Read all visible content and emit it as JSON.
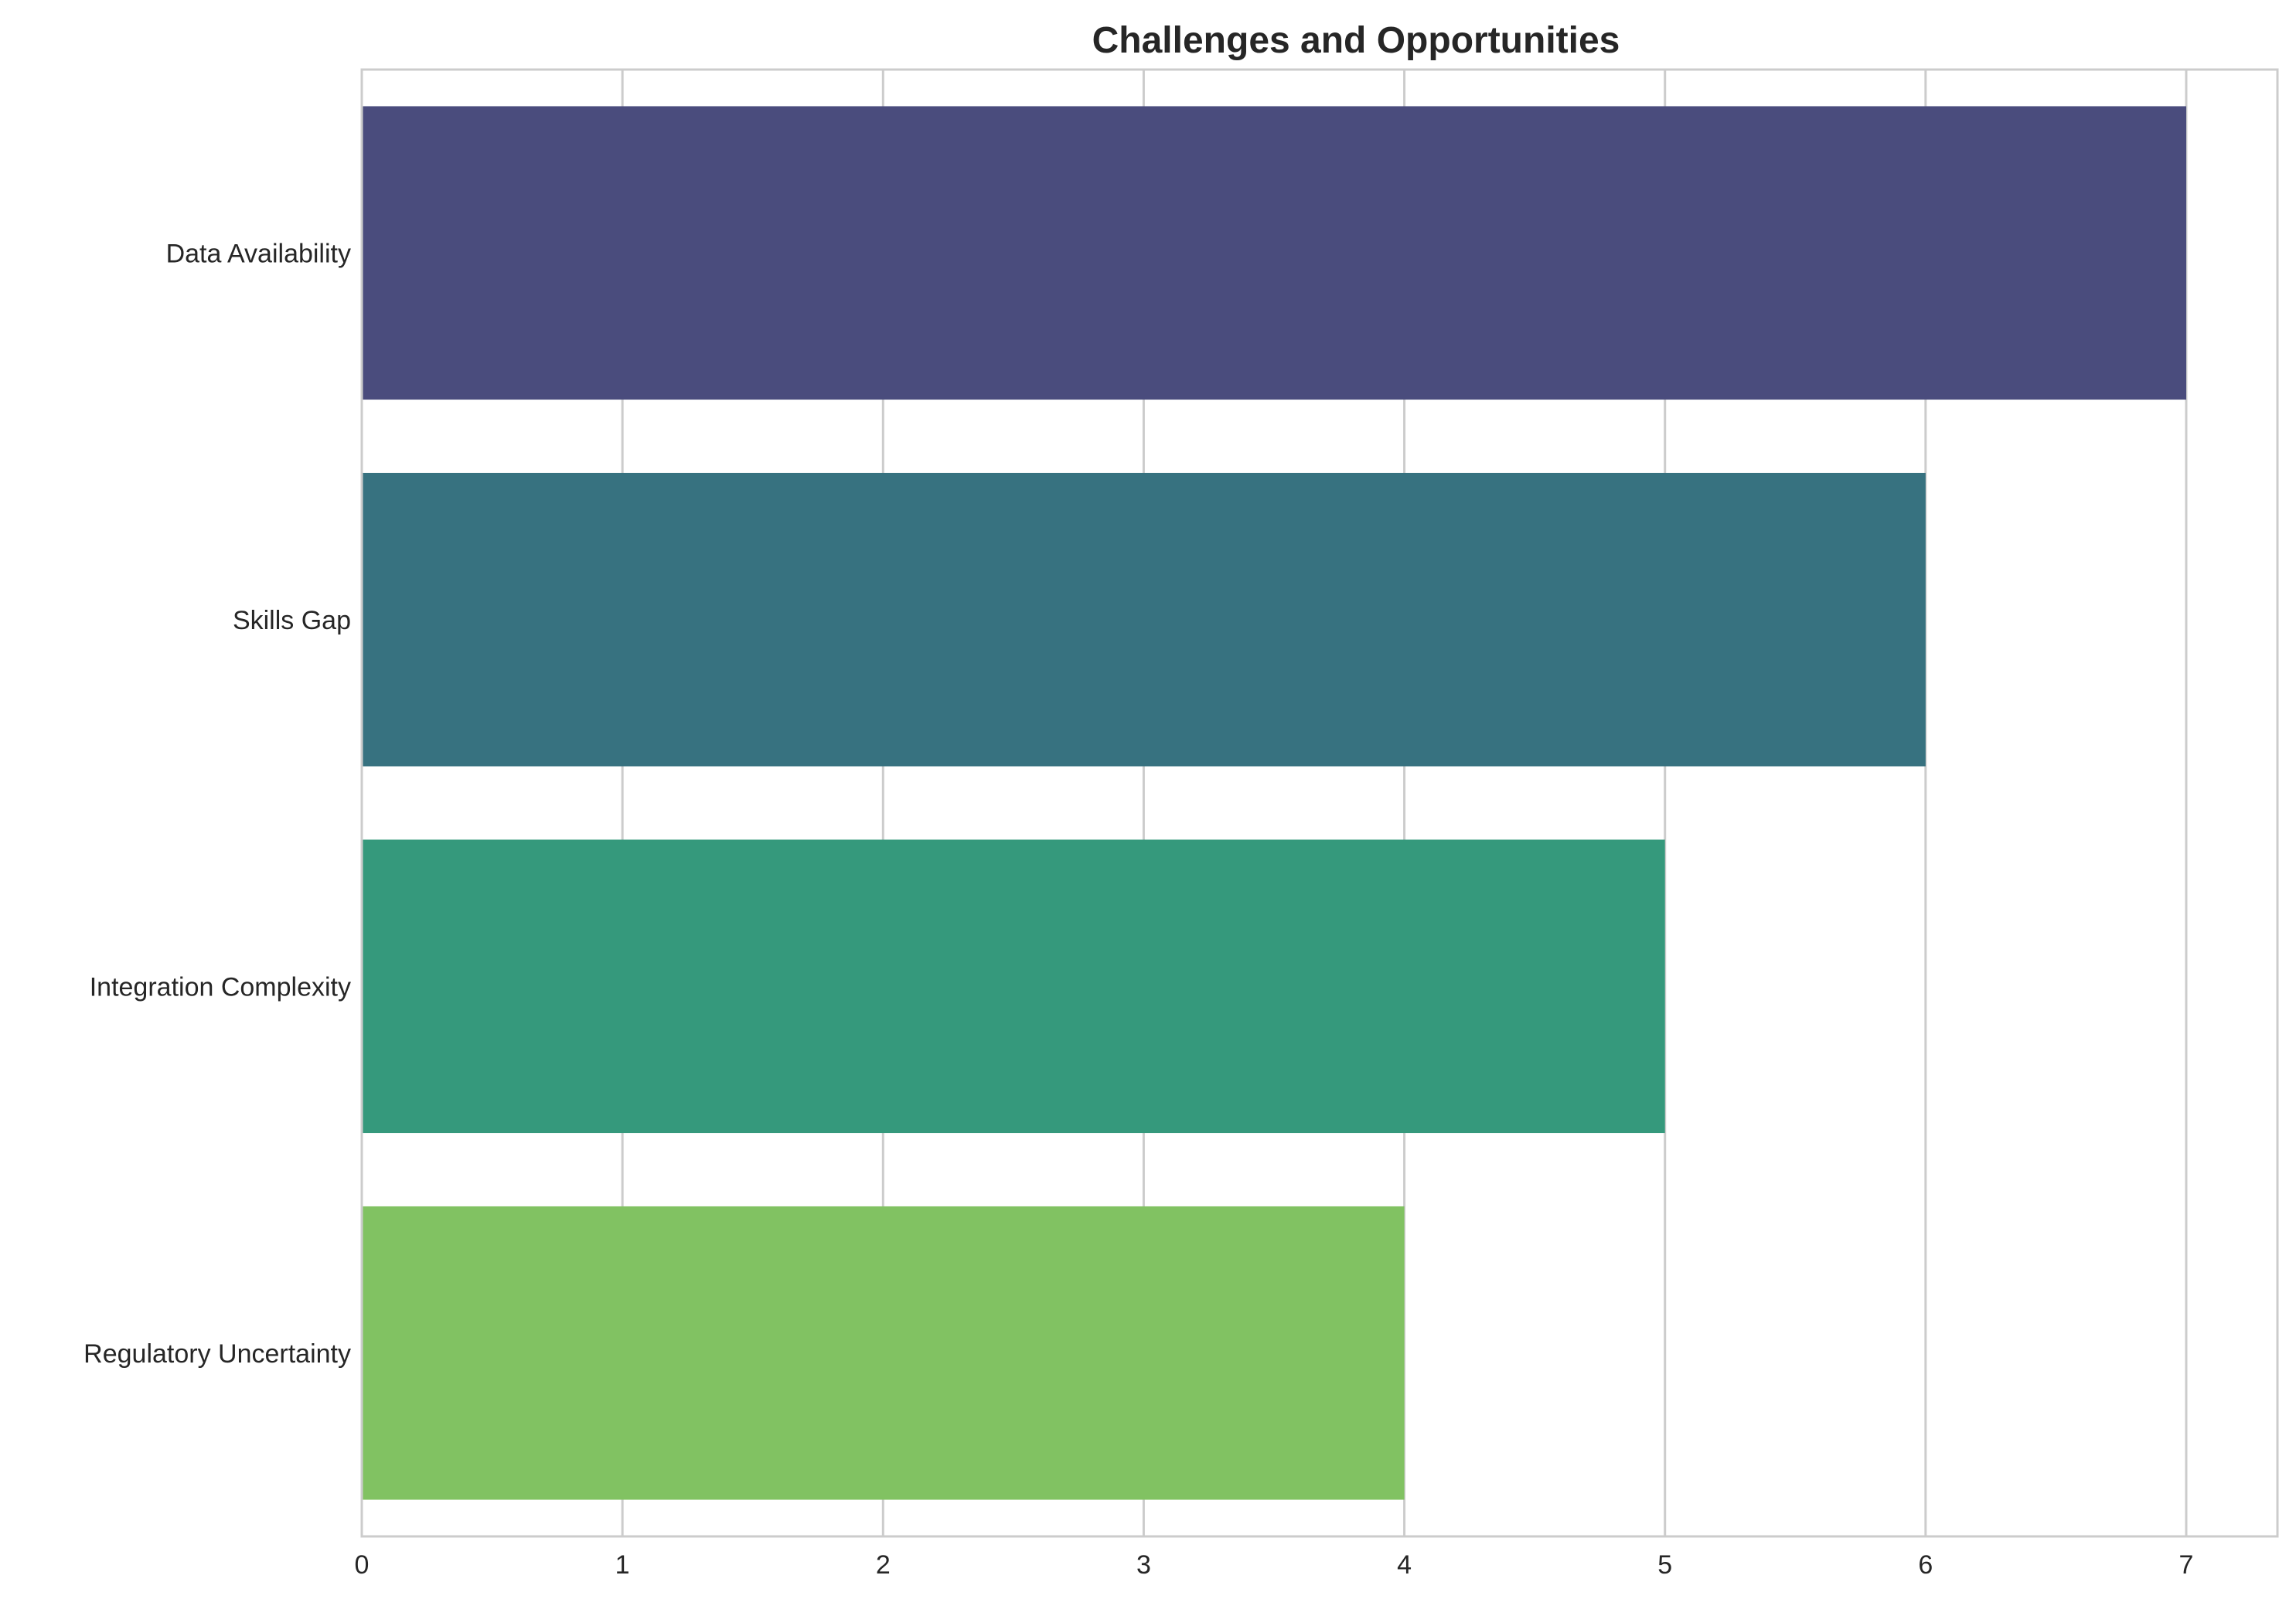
{
  "chart_data": {
    "type": "bar",
    "orientation": "horizontal",
    "title": "Challenges and Opportunities",
    "xlabel": "",
    "ylabel": "",
    "categories": [
      "Data Availability",
      "Skills Gap",
      "Integration Complexity",
      "Regulatory Uncertainty"
    ],
    "values": [
      7,
      6,
      5,
      4
    ],
    "colors": [
      "#4a4c7d",
      "#377280",
      "#35997c",
      "#81c262"
    ],
    "xlim": [
      0,
      7.35
    ],
    "xticks": [
      "0",
      "1",
      "2",
      "3",
      "4",
      "5",
      "6",
      "7"
    ],
    "grid": true,
    "grid_color": "#cccccc",
    "frame_color": "#cccccc",
    "legend": "none"
  }
}
